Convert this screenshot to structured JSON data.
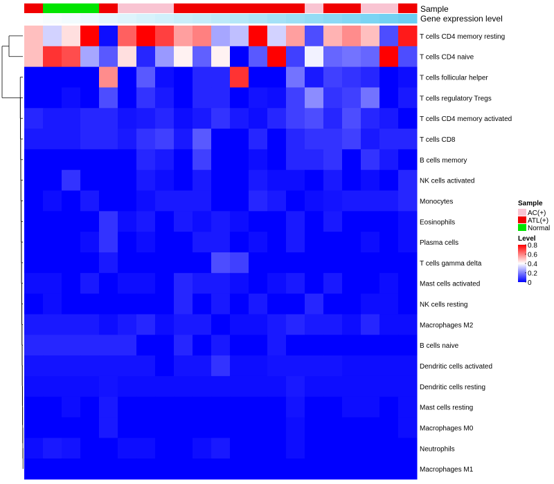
{
  "chart_data": {
    "type": "heatmap",
    "annotation_labels": {
      "sample": "Sample",
      "gene": "Gene expression level"
    },
    "sample_groups": [
      "ATL(+)",
      "Normal",
      "Normal",
      "Normal",
      "ATL(+)",
      "AC(+)",
      "AC(+)",
      "AC(+)",
      "ATL(+)",
      "ATL(+)",
      "ATL(+)",
      "ATL(+)",
      "ATL(+)",
      "ATL(+)",
      "ATL(+)",
      "AC(+)",
      "ATL(+)",
      "ATL(+)",
      "AC(+)",
      "AC(+)",
      "ATL(+)"
    ],
    "gene_expression_level": [
      0.02,
      0.05,
      0.08,
      0.12,
      0.16,
      0.2,
      0.24,
      0.28,
      0.32,
      0.36,
      0.4,
      0.45,
      0.5,
      0.55,
      0.6,
      0.65,
      0.7,
      0.75,
      0.8,
      0.85,
      0.9
    ],
    "rows": [
      "T cells CD4 memory resting",
      "T cells CD4 naive",
      "T cells follicular helper",
      "T cells regulatory  Tregs",
      "T cells CD4 memory activated",
      "T cells CD8",
      "B cells memory",
      "NK cells activated",
      "Monocytes",
      "Eosinophils",
      "Plasma cells",
      "T cells gamma delta",
      "Mast cells activated",
      "NK cells resting",
      "Macrophages M2",
      "B cells naive",
      "Dendritic cells activated",
      "Dendritic cells resting",
      "Mast cells resting",
      "Macrophages M0",
      "Neutrophils",
      "Macrophages M1"
    ],
    "values": [
      [
        0.5,
        0.33,
        0.45,
        0.8,
        0.02,
        0.65,
        0.8,
        0.7,
        0.55,
        0.6,
        0.26,
        0.3,
        0.8,
        0.33,
        0.55,
        0.12,
        0.52,
        0.58,
        0.5,
        0.12,
        0.76
      ],
      [
        0.5,
        0.72,
        0.68,
        0.26,
        0.14,
        0.45,
        0.06,
        0.24,
        0.42,
        0.15,
        0.42,
        0.0,
        0.14,
        0.8,
        0.1,
        0.38,
        0.16,
        0.18,
        0.16,
        0.82,
        0.12
      ],
      [
        0.0,
        0.0,
        0.0,
        0.0,
        0.58,
        0.0,
        0.14,
        0.02,
        0.0,
        0.06,
        0.06,
        0.72,
        0.0,
        0.0,
        0.18,
        0.04,
        0.1,
        0.08,
        0.06,
        0.0,
        0.02
      ],
      [
        0.0,
        0.0,
        0.02,
        0.0,
        0.12,
        0.0,
        0.08,
        0.04,
        0.0,
        0.06,
        0.06,
        0.0,
        0.03,
        0.02,
        0.1,
        0.22,
        0.08,
        0.1,
        0.18,
        0.0,
        0.04
      ],
      [
        0.06,
        0.04,
        0.04,
        0.06,
        0.06,
        0.03,
        0.04,
        0.06,
        0.02,
        0.04,
        0.08,
        0.04,
        0.02,
        0.06,
        0.1,
        0.12,
        0.06,
        0.12,
        0.06,
        0.04,
        0.0
      ],
      [
        0.04,
        0.04,
        0.04,
        0.06,
        0.06,
        0.04,
        0.08,
        0.1,
        0.04,
        0.14,
        0.0,
        0.0,
        0.06,
        0.0,
        0.06,
        0.08,
        0.08,
        0.1,
        0.04,
        0.06,
        0.06
      ],
      [
        0.0,
        0.0,
        0.0,
        0.0,
        0.0,
        0.0,
        0.06,
        0.04,
        0.0,
        0.1,
        0.0,
        0.0,
        0.02,
        0.0,
        0.06,
        0.06,
        0.08,
        0.0,
        0.08,
        0.04,
        0.0
      ],
      [
        0.0,
        0.0,
        0.08,
        0.0,
        0.0,
        0.0,
        0.04,
        0.02,
        0.0,
        0.04,
        0.0,
        0.0,
        0.04,
        0.02,
        0.02,
        0.0,
        0.04,
        0.0,
        0.02,
        0.0,
        0.06
      ],
      [
        0.0,
        0.02,
        0.0,
        0.04,
        0.0,
        0.0,
        0.02,
        0.04,
        0.04,
        0.04,
        0.0,
        0.0,
        0.06,
        0.04,
        0.0,
        0.02,
        0.03,
        0.04,
        0.04,
        0.04,
        0.06
      ],
      [
        0.0,
        0.0,
        0.0,
        0.0,
        0.08,
        0.02,
        0.04,
        0.0,
        0.04,
        0.02,
        0.04,
        0.02,
        0.0,
        0.0,
        0.04,
        0.0,
        0.04,
        0.0,
        0.0,
        0.0,
        0.02
      ],
      [
        0.0,
        0.0,
        0.0,
        0.02,
        0.08,
        0.0,
        0.02,
        0.0,
        0.0,
        0.04,
        0.04,
        0.0,
        0.02,
        0.0,
        0.04,
        0.0,
        0.0,
        0.0,
        0.02,
        0.0,
        0.02
      ],
      [
        0.0,
        0.0,
        0.0,
        0.0,
        0.04,
        0.0,
        0.0,
        0.0,
        0.0,
        0.0,
        0.12,
        0.1,
        0.0,
        0.0,
        0.0,
        0.0,
        0.0,
        0.0,
        0.0,
        0.0,
        0.0
      ],
      [
        0.02,
        0.02,
        0.0,
        0.04,
        0.0,
        0.02,
        0.02,
        0.0,
        0.06,
        0.04,
        0.04,
        0.02,
        0.0,
        0.02,
        0.04,
        0.0,
        0.04,
        0.0,
        0.0,
        0.02,
        0.0
      ],
      [
        0.0,
        0.02,
        0.0,
        0.0,
        0.0,
        0.0,
        0.0,
        0.0,
        0.06,
        0.0,
        0.04,
        0.0,
        0.04,
        0.0,
        0.0,
        0.06,
        0.0,
        0.0,
        0.02,
        0.02,
        0.0
      ],
      [
        0.04,
        0.04,
        0.04,
        0.04,
        0.02,
        0.04,
        0.06,
        0.02,
        0.04,
        0.04,
        0.0,
        0.02,
        0.02,
        0.04,
        0.06,
        0.04,
        0.04,
        0.02,
        0.06,
        0.02,
        0.02
      ],
      [
        0.06,
        0.06,
        0.06,
        0.06,
        0.06,
        0.06,
        0.0,
        0.0,
        0.06,
        0.0,
        0.04,
        0.0,
        0.0,
        0.04,
        0.0,
        0.0,
        0.0,
        0.0,
        0.0,
        0.0,
        0.0
      ],
      [
        0.03,
        0.03,
        0.03,
        0.03,
        0.03,
        0.03,
        0.03,
        0.0,
        0.03,
        0.03,
        0.08,
        0.02,
        0.02,
        0.03,
        0.03,
        0.03,
        0.03,
        0.02,
        0.02,
        0.02,
        0.02
      ],
      [
        0.02,
        0.02,
        0.02,
        0.02,
        0.03,
        0.02,
        0.02,
        0.02,
        0.02,
        0.02,
        0.02,
        0.02,
        0.02,
        0.02,
        0.04,
        0.02,
        0.02,
        0.02,
        0.02,
        0.02,
        0.02
      ],
      [
        0.0,
        0.0,
        0.02,
        0.0,
        0.04,
        0.0,
        0.0,
        0.0,
        0.0,
        0.0,
        0.0,
        0.0,
        0.0,
        0.0,
        0.03,
        0.0,
        0.0,
        0.02,
        0.02,
        0.0,
        0.02
      ],
      [
        0.0,
        0.0,
        0.0,
        0.0,
        0.04,
        0.0,
        0.0,
        0.0,
        0.0,
        0.0,
        0.0,
        0.0,
        0.0,
        0.0,
        0.02,
        0.0,
        0.0,
        0.0,
        0.0,
        0.0,
        0.02
      ],
      [
        0.02,
        0.04,
        0.03,
        0.0,
        0.0,
        0.02,
        0.02,
        0.0,
        0.0,
        0.02,
        0.04,
        0.0,
        0.0,
        0.0,
        0.02,
        0.0,
        0.0,
        0.0,
        0.0,
        0.0,
        0.0
      ],
      [
        0.0,
        0.0,
        0.0,
        0.0,
        0.0,
        0.0,
        0.0,
        0.0,
        0.0,
        0.0,
        0.0,
        0.0,
        0.0,
        0.0,
        0.0,
        0.0,
        0.0,
        0.0,
        0.0,
        0.0,
        0.0
      ]
    ],
    "dendrogram_tree": {
      "leaves": [
        0,
        1,
        2,
        3,
        4,
        5,
        6,
        7,
        8,
        9,
        10,
        11,
        12,
        13,
        14,
        15,
        16,
        17,
        18,
        19,
        20,
        21
      ],
      "note": "row clustering tree at left"
    },
    "legend": {
      "sample": {
        "title": "Sample",
        "entries": [
          {
            "label": "AC(+)",
            "color": "#f9c4d2"
          },
          {
            "label": "ATL(+)",
            "color": "#f00000"
          },
          {
            "label": "Normal",
            "color": "#00e400"
          }
        ]
      },
      "level": {
        "title": "Level",
        "ticks": [
          "0.8",
          "0.6",
          "0.4",
          "0.2",
          "0"
        ],
        "tick_values": [
          0.8,
          0.6,
          0.4,
          0.2,
          0
        ],
        "range": [
          0,
          0.8
        ]
      }
    },
    "colors": {
      "low": "#0000ff",
      "mid": "#ffffff",
      "high": "#ff0000",
      "gene_low": "#ffffff",
      "gene_high": "#5ac9f0"
    }
  }
}
